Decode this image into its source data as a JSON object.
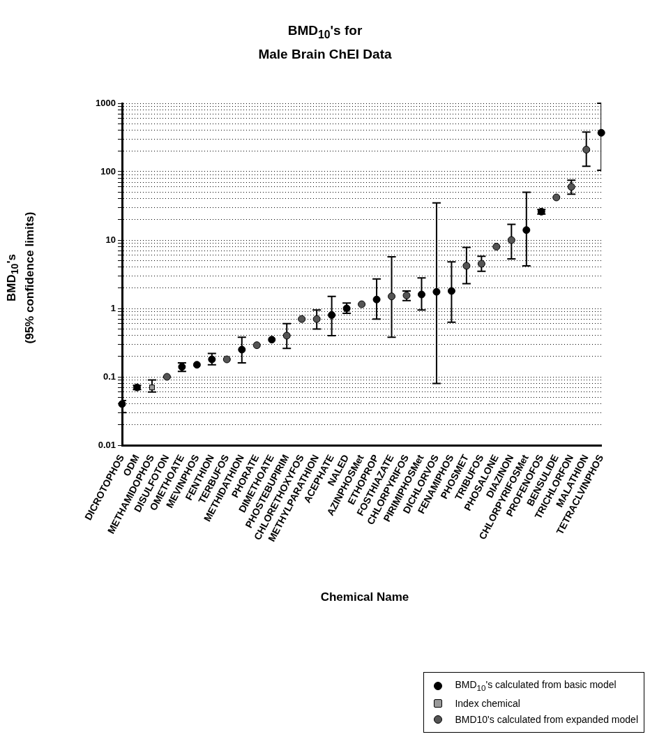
{
  "chart_data": {
    "type": "scatter",
    "title": "BMD$_{10}$'s for\nMale Brain ChEI Data",
    "xlabel": "Chemical Name",
    "ylabel": "BMD$_{10}$'s\n(95% confidence limits)",
    "categories": [
      "DICROTOPHOS",
      "ODM",
      "METHAMIDOPHOS",
      "DISULFOTON",
      "OMETHOATE",
      "MEVINPHOS",
      "FENTHION",
      "TERBUFOS",
      "METHIDATHION",
      "PHORATE",
      "DIMETHOATE",
      "PHOSTEBUPIRIM",
      "CHLORETHOXYFOS",
      "METHYLPARATHION",
      "ACEPHATE",
      "NALED",
      "AZINPHOSMet",
      "ETHOPROP",
      "FOSTHIAZATE",
      "CHLORPYRIFOS",
      "PIRIMIPHOSMet",
      "DICHLORVOS",
      "FENAMIPHOS",
      "PHOSMET",
      "TRIBUFOS",
      "PHOSALONE",
      "DIAZINON",
      "CHLORPYRIFOSMet",
      "PROFENOFOS",
      "BENSULIDE",
      "TRICHLORFON",
      "MALATHION",
      "TETRACLVINPHOS"
    ],
    "series": [
      {
        "name": "BMD$_{10}$'s calculated from basic model",
        "color": "#000000",
        "marker": "circle",
        "values": [
          0.04,
          0.07,
          null,
          null,
          0.14,
          0.15,
          0.18,
          null,
          0.25,
          null,
          0.35,
          null,
          null,
          null,
          0.8,
          1.0,
          null,
          1.35,
          null,
          null,
          1.6,
          1.75,
          1.8,
          null,
          null,
          null,
          null,
          14,
          26,
          null,
          null,
          null,
          370
        ],
        "errors": [
          [
            0.03,
            0.045
          ],
          [
            0.065,
            0.075
          ],
          null,
          null,
          [
            0.12,
            0.16
          ],
          null,
          [
            0.15,
            0.22
          ],
          null,
          [
            0.16,
            0.38
          ],
          null,
          null,
          null,
          null,
          null,
          [
            0.4,
            1.5
          ],
          [
            0.85,
            1.2
          ],
          null,
          [
            0.7,
            2.7
          ],
          null,
          null,
          [
            0.95,
            2.8
          ],
          [
            0.08,
            35
          ],
          [
            0.63,
            4.8
          ],
          null,
          null,
          null,
          null,
          [
            4.2,
            50
          ],
          [
            24,
            28
          ],
          null,
          null,
          null,
          [
            105,
            1000
          ]
        ]
      },
      {
        "name": "Index chemical",
        "color": "#999999",
        "marker": "square",
        "values": [
          null,
          null,
          0.07,
          null,
          null,
          null,
          null,
          null,
          null,
          null,
          null,
          null,
          null,
          null,
          null,
          null,
          null,
          null,
          null,
          null,
          null,
          null,
          null,
          null,
          null,
          null,
          null,
          null,
          null,
          null,
          null,
          null,
          null
        ],
        "errors": [
          null,
          null,
          [
            0.06,
            0.09
          ],
          null,
          null,
          null,
          null,
          null,
          null,
          null,
          null,
          null,
          null,
          null,
          null,
          null,
          null,
          null,
          null,
          null,
          null,
          null,
          null,
          null,
          null,
          null,
          null,
          null,
          null,
          null,
          null,
          null,
          null
        ]
      },
      {
        "name": "BMD10's calculated from expanded model",
        "color": "#555555",
        "marker": "circle",
        "values": [
          null,
          null,
          null,
          0.1,
          null,
          null,
          null,
          0.18,
          null,
          0.29,
          null,
          0.4,
          0.7,
          0.7,
          null,
          null,
          1.15,
          null,
          1.5,
          1.55,
          null,
          null,
          null,
          4.2,
          4.5,
          8,
          10,
          null,
          null,
          42,
          60,
          210,
          null
        ],
        "errors": [
          null,
          null,
          null,
          null,
          null,
          null,
          null,
          null,
          null,
          null,
          null,
          [
            0.26,
            0.6
          ],
          null,
          [
            0.5,
            0.95
          ],
          null,
          null,
          null,
          null,
          [
            0.38,
            5.7
          ],
          [
            1.3,
            1.8
          ],
          null,
          null,
          null,
          [
            2.3,
            7.8
          ],
          [
            3.5,
            5.8
          ],
          null,
          [
            5.3,
            17
          ],
          null,
          null,
          null,
          [
            47,
            75
          ],
          [
            120,
            380
          ],
          null
        ]
      }
    ],
    "log": true,
    "ylim": [
      0.01,
      1000
    ],
    "yticks": [
      0.01,
      {
        "value": 0.02,
        "label": null
      },
      {
        "value": 0.03,
        "label": null
      },
      {
        "value": 0.04,
        "label": null
      },
      {
        "value": 0.05,
        "label": null
      },
      {
        "value": 0.06,
        "label": null
      },
      {
        "value": 0.07,
        "label": null
      },
      {
        "value": 0.08,
        "label": null
      },
      {
        "value": 0.09,
        "label": null
      },
      0.1,
      {
        "value": 0.2,
        "label": null
      },
      {
        "value": 0.3,
        "label": null
      },
      {
        "value": 0.4,
        "label": null
      },
      {
        "value": 0.5,
        "label": null
      },
      {
        "value": 0.6,
        "label": null
      },
      {
        "value": 0.7,
        "label": null
      },
      {
        "value": 0.8,
        "label": null
      },
      {
        "value": 0.9,
        "label": null
      },
      1,
      {
        "value": 2,
        "label": null
      },
      {
        "value": 3,
        "label": null
      },
      {
        "value": 4,
        "label": null
      },
      {
        "value": 5,
        "label": null
      },
      {
        "value": 6,
        "label": null
      },
      {
        "value": 7,
        "label": null
      },
      {
        "value": 8,
        "label": null
      },
      {
        "value": 9,
        "label": null
      },
      10,
      {
        "value": 20,
        "label": null
      },
      {
        "value": 30,
        "label": null
      },
      {
        "value": 40,
        "label": null
      },
      {
        "value": 50,
        "label": null
      },
      {
        "value": 60,
        "label": null
      },
      {
        "value": 70,
        "label": null
      },
      {
        "value": 80,
        "label": null
      },
      {
        "value": 90,
        "label": null
      },
      100,
      {
        "value": 200,
        "label": null
      },
      {
        "value": 300,
        "label": null
      },
      {
        "value": 400,
        "label": null
      },
      {
        "value": 500,
        "label": null
      },
      {
        "value": 600,
        "label": null
      },
      {
        "value": 700,
        "label": null
      },
      {
        "value": 800,
        "label": null
      },
      {
        "value": 900,
        "label": null
      },
      1000
    ],
    "grid": "y",
    "legend": "bottom right"
  }
}
